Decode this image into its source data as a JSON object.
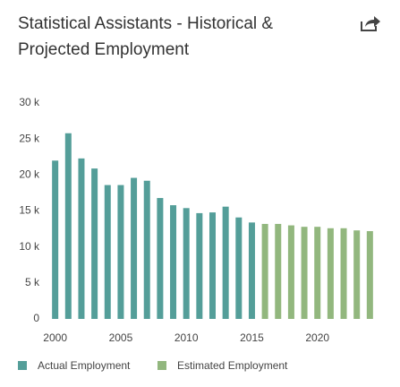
{
  "chart_data": {
    "type": "bar",
    "title": "Statistical Assistants - Historical & Projected Employment",
    "x": [
      2000,
      2001,
      2002,
      2003,
      2004,
      2005,
      2006,
      2007,
      2008,
      2009,
      2010,
      2011,
      2012,
      2013,
      2014,
      2015,
      2016,
      2017,
      2018,
      2019,
      2020,
      2021,
      2022,
      2023,
      2024
    ],
    "series": [
      {
        "name": "Actual Employment",
        "color": "#549e99",
        "values": [
          22000,
          25800,
          22300,
          20900,
          18600,
          18600,
          19600,
          19200,
          16800,
          15800,
          15400,
          14700,
          14800,
          15600,
          14100,
          13400,
          null,
          null,
          null,
          null,
          null,
          null,
          null,
          null,
          null
        ]
      },
      {
        "name": "Estimated Employment",
        "color": "#92b77e",
        "values": [
          null,
          null,
          null,
          null,
          null,
          null,
          null,
          null,
          null,
          null,
          null,
          null,
          null,
          null,
          null,
          null,
          13200,
          13200,
          13000,
          12800,
          12800,
          12600,
          12600,
          12300,
          12200
        ]
      }
    ],
    "xlim": [
      1999,
      2025
    ],
    "xticks": [
      2000,
      2005,
      2010,
      2015,
      2020
    ],
    "ylim": [
      0,
      30000
    ],
    "yticks": [
      0,
      {
        "value": 5000,
        "label": "5 k"
      },
      {
        "value": 10000,
        "label": "10 k"
      },
      {
        "value": 15000,
        "label": "15 k"
      },
      {
        "value": 20000,
        "label": "20 k"
      },
      {
        "value": 25000,
        "label": "25 k"
      },
      {
        "value": 30000,
        "label": "30 k"
      }
    ],
    "legend": "bottom"
  }
}
